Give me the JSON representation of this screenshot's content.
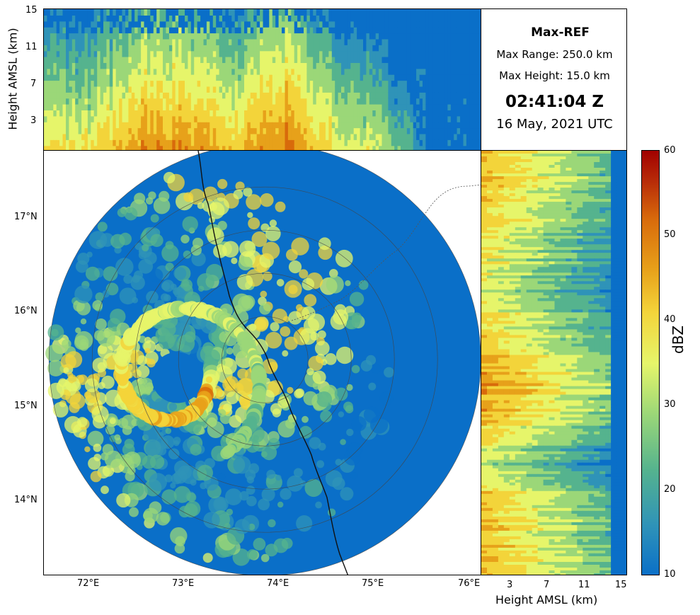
{
  "info": {
    "product": "Max-REF",
    "max_range": "Max Range: 250.0 km",
    "max_height": "Max Height: 15.0 km",
    "time": "02:41:04 Z",
    "date": "16 May, 2021 UTC"
  },
  "colors": {
    "scale": [
      "#0a6fc8",
      "#2f93b8",
      "#55b38e",
      "#9bd778",
      "#e6f56a",
      "#f3d43a",
      "#e7a11a",
      "#d86a0b",
      "#b72a08",
      "#a10000"
    ],
    "background": "#ffffff"
  },
  "chart_data": [
    {
      "type": "heatmap",
      "panel": "top cross-section",
      "ylabel": "Height AMSL (km)",
      "yticks": [
        "3",
        "7",
        "11",
        "15"
      ],
      "yrange": [
        0,
        15
      ],
      "xrange_deg_e": [
        71.5,
        76.0
      ],
      "profile_peak_dbz": [
        {
          "lon": 72.0,
          "max_dbz": 36
        },
        {
          "lon": 72.5,
          "max_dbz": 46
        },
        {
          "lon": 73.0,
          "max_dbz": 45
        },
        {
          "lon": 73.5,
          "max_dbz": 40
        },
        {
          "lon": 74.0,
          "max_dbz": 48
        },
        {
          "lon": 74.5,
          "max_dbz": 35
        },
        {
          "lon": 75.0,
          "max_dbz": 30
        },
        {
          "lon": 75.5,
          "max_dbz": 10
        }
      ]
    },
    {
      "type": "heatmap",
      "panel": "plan-view maximum reflectivity",
      "xticks": [
        "72°E",
        "73°E",
        "74°E",
        "75°E",
        "76°E"
      ],
      "yticks": [
        "14°N",
        "15°N",
        "16°N",
        "17°N"
      ],
      "xrange_deg_e": [
        71.5,
        76.1
      ],
      "yrange_deg_n": [
        13.2,
        17.7
      ],
      "radar_center": {
        "lon": 73.82,
        "lat": 15.49
      },
      "range_rings_km": [
        50,
        100,
        150,
        200,
        250
      ],
      "eye_center": {
        "lon": 72.9,
        "lat": 15.3
      }
    },
    {
      "type": "heatmap",
      "panel": "side cross-section",
      "xlabel": "Height AMSL (km)",
      "xticks": [
        "3",
        "7",
        "11",
        "15"
      ],
      "xrange": [
        0,
        15
      ],
      "profile_peak_dbz": [
        {
          "lat": 17.2,
          "max_dbz": 40
        },
        {
          "lat": 16.2,
          "max_dbz": 32
        },
        {
          "lat": 15.3,
          "max_dbz": 45
        },
        {
          "lat": 15.0,
          "max_dbz": 44
        },
        {
          "lat": 14.4,
          "max_dbz": 30
        },
        {
          "lat": 14.0,
          "max_dbz": 40
        }
      ]
    },
    {
      "type": "colorbar",
      "label": "dBZ",
      "range": [
        10,
        60
      ],
      "ticks": [
        "10",
        "20",
        "30",
        "40",
        "50",
        "60"
      ]
    }
  ]
}
